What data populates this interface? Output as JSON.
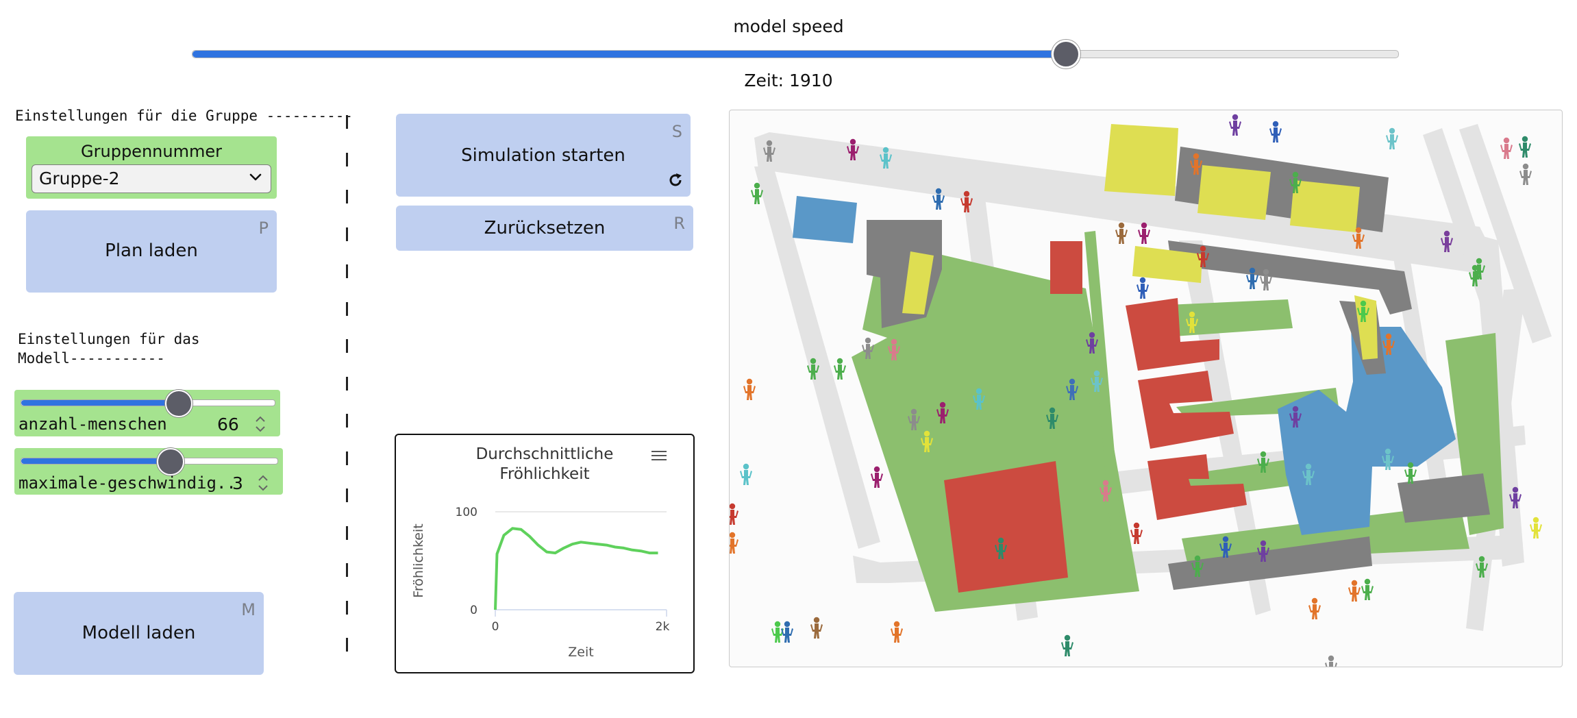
{
  "speed": {
    "label": "model speed",
    "value_fraction": 0.725
  },
  "time": {
    "label": "Zeit: 1910"
  },
  "group_settings": {
    "title": "Einstellungen für die Gruppe ----------",
    "group_label": "Gruppennummer",
    "group_value": "Gruppe-2",
    "plan_button": "Plan laden",
    "plan_hotkey": "P"
  },
  "model_settings": {
    "title_line1": "Einstellungen für das",
    "title_line2": "Modell-----------",
    "slider1": {
      "label": "anzahl-menschen",
      "value": "66",
      "fraction": 0.62
    },
    "slider2": {
      "label": "maximale-geschwindig...",
      "value": "3",
      "fraction": 0.58
    },
    "model_button": "Modell laden",
    "model_hotkey": "M"
  },
  "controls": {
    "start_button": "Simulation starten",
    "start_hotkey": "S",
    "reset_button": "Zurücksetzen",
    "reset_hotkey": "R"
  },
  "colors": {
    "accent": "#2f73e0",
    "button": "#bfcff0",
    "widget_green": "#a5e38f",
    "grass": "#8cbf6e",
    "building_red": "#cc4b40",
    "building_gray": "#808080",
    "building_yellow": "#dede52",
    "building_blue": "#5a98c8",
    "road": "#e3e3e3"
  },
  "chart_data": {
    "type": "line",
    "title_line1": "Durchschnittliche",
    "title_line2": "Fröhlichkeit",
    "xlabel": "Zeit",
    "ylabel": "Fröhlichkeit",
    "xlim": [
      0,
      2000
    ],
    "ylim": [
      0,
      100
    ],
    "x_ticks": [
      "0",
      "2k"
    ],
    "y_ticks": [
      "0",
      "100"
    ],
    "series": [
      {
        "x": [
          0,
          20,
          100,
          200,
          300,
          400,
          500,
          600,
          700,
          800,
          900,
          1000,
          1100,
          1200,
          1300,
          1400,
          1500,
          1600,
          1700,
          1800,
          1900
        ],
        "y": [
          0,
          57,
          76,
          83,
          82,
          75,
          66,
          59,
          58,
          63,
          67,
          69,
          68,
          67,
          66,
          64,
          63,
          61,
          60,
          58,
          58
        ]
      }
    ]
  }
}
